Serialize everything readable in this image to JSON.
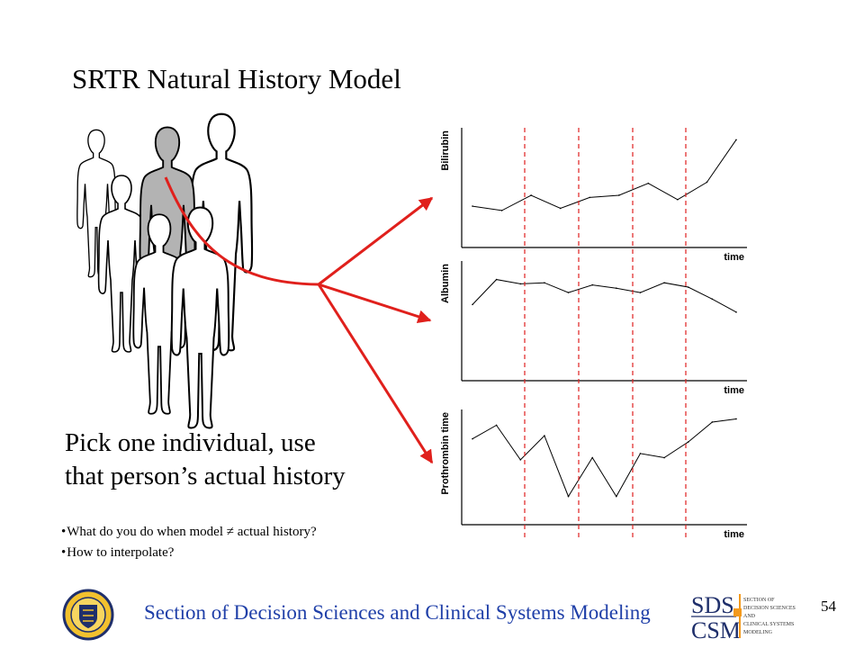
{
  "slide": {
    "title": "SRTR Natural History Model",
    "pick_lines": [
      "Pick one individual, use",
      "that person’s actual history"
    ],
    "bullets": [
      "What do you do when model ≠ actual history?",
      "How to interpolate?"
    ],
    "footer": "Section of Decision Sciences and Clinical Systems Modeling",
    "page_number": "54"
  },
  "chart_data": [
    {
      "type": "line",
      "ylabel": "Bilirubin",
      "xlabel": "time",
      "x": [
        1,
        2,
        3,
        4,
        5,
        6,
        7,
        8,
        9,
        10
      ],
      "values": [
        38,
        34,
        48,
        36,
        46,
        48,
        59,
        44,
        60,
        99
      ]
    },
    {
      "type": "line",
      "ylabel": "Albumin",
      "xlabel": "time",
      "x": [
        1,
        2,
        3,
        4,
        5,
        6,
        7,
        8,
        9,
        10,
        11,
        12
      ],
      "values": [
        70,
        93,
        89,
        90,
        81,
        88,
        85,
        81,
        90,
        86,
        75,
        63
      ]
    },
    {
      "type": "line",
      "ylabel": "Prothrombin time",
      "xlabel": "time",
      "x": [
        1,
        2,
        3,
        4,
        5,
        6,
        7,
        8,
        9,
        10,
        11,
        12
      ],
      "values": [
        82,
        95,
        62,
        85,
        27,
        64,
        27,
        68,
        64,
        79,
        98,
        101
      ]
    }
  ],
  "logos": {
    "seal_text": "UNIVERSITY OF PITTSBURGH",
    "sds": "SDS",
    "csm": "CSM",
    "sds_lines": [
      "SECTION OF",
      "DECISION SCIENCES",
      "AND",
      "CLINICAL SYSTEMS",
      "MODELING"
    ]
  },
  "colors": {
    "red": "#e0201c",
    "footer_blue": "#1f3fa8",
    "figure_gray": "#b3b3b3",
    "dashed_red": "#e02020"
  }
}
